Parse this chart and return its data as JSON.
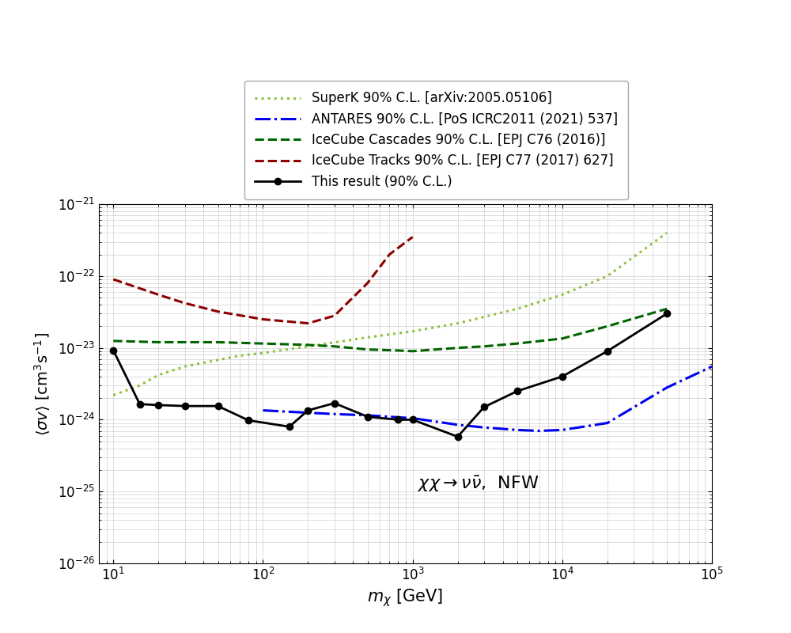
{
  "xlabel": "$m_{\\chi}$ [GeV]",
  "ylabel": "$\\langle \\sigma v \\rangle$ [cm$^3$s$^{-1}$]",
  "annotation": "$\\chi\\chi \\rightarrow \\nu\\bar{\\nu}$,  NFW",
  "xlim": [
    8,
    100000
  ],
  "ylim": [
    1e-26,
    1e-21
  ],
  "superK_label": "SuperK 90% C.L. [arXiv:2005.05106]",
  "superK_color": "#90c040",
  "superK_x": [
    10,
    15,
    20,
    30,
    50,
    70,
    100,
    200,
    500,
    1000,
    2000,
    5000,
    10000,
    20000,
    50000
  ],
  "superK_y": [
    2.2e-24,
    3e-24,
    4.2e-24,
    5.5e-24,
    6.8e-24,
    7.8e-24,
    8.5e-24,
    1.05e-23,
    1.4e-23,
    1.7e-23,
    2.2e-23,
    3.5e-23,
    5.5e-23,
    1e-22,
    4e-22
  ],
  "antares_label": "ANTARES 90% C.L. [PoS ICRC2011 (2021) 537]",
  "antares_color": "#0000ee",
  "antares_x": [
    100,
    200,
    300,
    500,
    700,
    1000,
    2000,
    3000,
    5000,
    7000,
    10000,
    20000,
    50000,
    100000
  ],
  "antares_y": [
    1.35e-24,
    1.25e-24,
    1.2e-24,
    1.15e-24,
    1.1e-24,
    1.05e-24,
    8.5e-25,
    7.8e-25,
    7.2e-25,
    7e-25,
    7.2e-25,
    9e-25,
    2.8e-24,
    5.5e-24
  ],
  "icecube_cascades_label": "IceCube Cascades 90% C.L. [EPJ C76 (2016)]",
  "icecube_cascades_color": "#006400",
  "icecube_cascades_x": [
    10,
    20,
    30,
    50,
    100,
    200,
    300,
    500,
    800,
    1000,
    2000,
    3000,
    5000,
    10000,
    20000,
    50000
  ],
  "icecube_cascades_y": [
    1.25e-23,
    1.2e-23,
    1.2e-23,
    1.2e-23,
    1.15e-23,
    1.1e-23,
    1.05e-23,
    9.5e-24,
    9.2e-24,
    9e-24,
    1e-23,
    1.05e-23,
    1.15e-23,
    1.35e-23,
    2e-23,
    3.5e-23
  ],
  "icecube_tracks_label": "IceCube Tracks 90% C.L. [EPJ C77 (2017) 627]",
  "icecube_tracks_color": "#8b0000",
  "icecube_tracks_x": [
    10,
    20,
    30,
    50,
    100,
    200,
    300,
    500,
    700,
    1000
  ],
  "icecube_tracks_y": [
    9e-23,
    5.5e-23,
    4.2e-23,
    3.2e-23,
    2.5e-23,
    2.2e-23,
    2.8e-23,
    8e-23,
    2e-22,
    3.5e-22
  ],
  "this_result_label": "This result (90% C.L.)",
  "this_result_color": "#000000",
  "this_result_x": [
    10,
    15,
    20,
    30,
    50,
    80,
    150,
    200,
    300,
    500,
    800,
    1000,
    2000,
    3000,
    5000,
    10000,
    20000,
    50000
  ],
  "this_result_y": [
    9.2e-24,
    1.65e-24,
    1.6e-24,
    1.55e-24,
    1.55e-24,
    9.8e-25,
    8e-25,
    1.35e-24,
    1.7e-24,
    1.1e-24,
    1e-24,
    1e-24,
    5.8e-25,
    1.5e-24,
    2.5e-24,
    4e-24,
    9e-24,
    3e-23
  ]
}
